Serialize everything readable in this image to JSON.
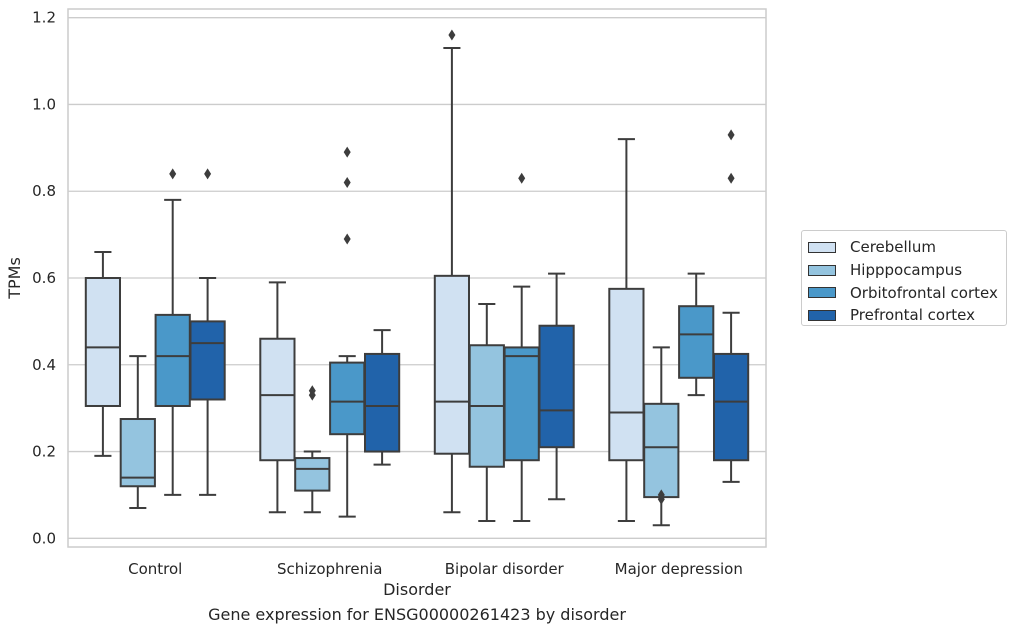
{
  "chart_data": {
    "type": "box",
    "title": "Gene expression for ENSG00000261423 by disorder",
    "xlabel": "Disorder",
    "ylabel": "TPMs",
    "ylim": [
      -0.02,
      1.22
    ],
    "yticks": [
      "0.0",
      "0.2",
      "0.4",
      "0.6",
      "0.8",
      "1.0",
      "1.2"
    ],
    "grid": true,
    "legend_position": "right",
    "categories": [
      "Control",
      "Schizophrenia",
      "Bipolar disorder",
      "Major depression"
    ],
    "series": [
      {
        "name": "Cerebellum",
        "color": "#d0e1f2",
        "boxes": [
          {
            "whislo": 0.19,
            "q1": 0.305,
            "med": 0.44,
            "q3": 0.6,
            "whishi": 0.66,
            "fliers": []
          },
          {
            "whislo": 0.06,
            "q1": 0.18,
            "med": 0.33,
            "q3": 0.46,
            "whishi": 0.59,
            "fliers": []
          },
          {
            "whislo": 0.06,
            "q1": 0.195,
            "med": 0.315,
            "q3": 0.605,
            "whishi": 1.13,
            "fliers": [
              1.16
            ]
          },
          {
            "whislo": 0.04,
            "q1": 0.18,
            "med": 0.29,
            "q3": 0.575,
            "whishi": 0.92,
            "fliers": []
          }
        ]
      },
      {
        "name": "Hipppocampus",
        "color": "#94c4df",
        "boxes": [
          {
            "whislo": 0.07,
            "q1": 0.12,
            "med": 0.14,
            "q3": 0.275,
            "whishi": 0.42,
            "fliers": []
          },
          {
            "whislo": 0.06,
            "q1": 0.11,
            "med": 0.16,
            "q3": 0.185,
            "whishi": 0.2,
            "fliers": [
              0.33,
              0.34
            ]
          },
          {
            "whislo": 0.04,
            "q1": 0.165,
            "med": 0.305,
            "q3": 0.445,
            "whishi": 0.54,
            "fliers": []
          },
          {
            "whislo": 0.03,
            "q1": 0.095,
            "med": 0.21,
            "q3": 0.31,
            "whishi": 0.44,
            "fliers": [
              0.09,
              0.1
            ]
          }
        ]
      },
      {
        "name": "Orbitofrontal cortex",
        "color": "#4a98c9",
        "boxes": [
          {
            "whislo": 0.1,
            "q1": 0.305,
            "med": 0.42,
            "q3": 0.515,
            "whishi": 0.78,
            "fliers": [
              0.84
            ]
          },
          {
            "whislo": 0.05,
            "q1": 0.24,
            "med": 0.315,
            "q3": 0.405,
            "whishi": 0.42,
            "fliers": [
              0.69,
              0.82,
              0.89
            ]
          },
          {
            "whislo": 0.04,
            "q1": 0.18,
            "med": 0.42,
            "q3": 0.44,
            "whishi": 0.58,
            "fliers": [
              0.83
            ]
          },
          {
            "whislo": 0.33,
            "q1": 0.37,
            "med": 0.47,
            "q3": 0.535,
            "whishi": 0.61,
            "fliers": []
          }
        ]
      },
      {
        "name": "Prefrontal cortex",
        "color": "#2163aa",
        "boxes": [
          {
            "whislo": 0.1,
            "q1": 0.32,
            "med": 0.45,
            "q3": 0.5,
            "whishi": 0.6,
            "fliers": [
              0.84
            ]
          },
          {
            "whislo": 0.17,
            "q1": 0.2,
            "med": 0.305,
            "q3": 0.425,
            "whishi": 0.48,
            "fliers": []
          },
          {
            "whislo": 0.09,
            "q1": 0.21,
            "med": 0.295,
            "q3": 0.49,
            "whishi": 0.61,
            "fliers": []
          },
          {
            "whislo": 0.13,
            "q1": 0.18,
            "med": 0.315,
            "q3": 0.425,
            "whishi": 0.52,
            "fliers": [
              0.83,
              0.93
            ]
          }
        ]
      }
    ]
  }
}
